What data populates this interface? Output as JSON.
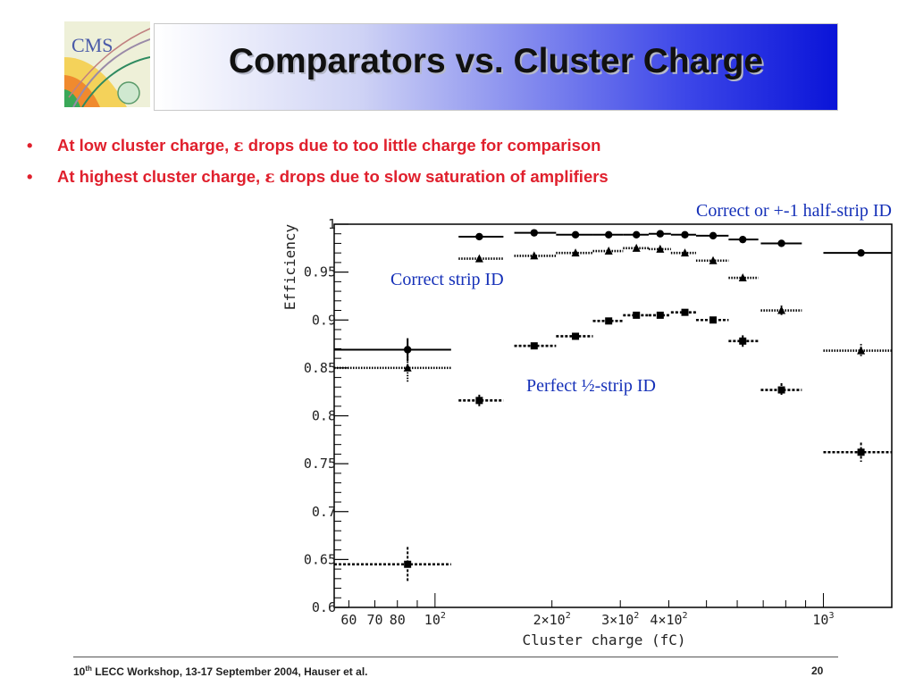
{
  "slide": {
    "title": "Comparators vs. Cluster Charge",
    "logo_text": "CMS",
    "bullets": [
      {
        "before": "At low cluster charge, ",
        "symbol": "ε",
        "after": " drops due to too little charge for comparison"
      },
      {
        "before": "At highest cluster charge, ",
        "symbol": "ε",
        "after": " drops due to slow saturation of amplifiers"
      }
    ],
    "footer": {
      "ordinal": "10",
      "sup": "th",
      "rest": " LECC Workshop, 13-17 September 2004, Hauser et al."
    },
    "page_number": "20",
    "colors": {
      "title_gradient_end": "#0a14d8",
      "bullet_text": "#e0202d",
      "annotation_text": "#1530b8"
    }
  },
  "chart_data": {
    "type": "scatter",
    "xscale": "log",
    "xlim": [
      55,
      1500
    ],
    "ylim": [
      0.6,
      1.0
    ],
    "xlabel": "Cluster charge (fC)",
    "ylabel": "Efficiency",
    "yticks": [
      {
        "v": 0.6,
        "label": "0.6"
      },
      {
        "v": 0.65,
        "label": "0.65"
      },
      {
        "v": 0.7,
        "label": "0.7"
      },
      {
        "v": 0.75,
        "label": "0.75"
      },
      {
        "v": 0.8,
        "label": "0.8"
      },
      {
        "v": 0.85,
        "label": "0.85"
      },
      {
        "v": 0.9,
        "label": "0.9"
      },
      {
        "v": 0.95,
        "label": "0.95"
      },
      {
        "v": 1.0,
        "label": "1"
      }
    ],
    "xtick_values": [
      60,
      70,
      80,
      90,
      100,
      200,
      300,
      400,
      500,
      600,
      700,
      800,
      900,
      1000
    ],
    "xtick_labels": [
      {
        "v": 60,
        "text": "60"
      },
      {
        "v": 70,
        "text": "70"
      },
      {
        "v": 80,
        "text": "80"
      },
      {
        "v": 100,
        "base": "10",
        "exp": "2"
      },
      {
        "v": 200,
        "base": "2×10",
        "exp": "2"
      },
      {
        "v": 300,
        "base": "3×10",
        "exp": "2"
      },
      {
        "v": 400,
        "base": "4×10",
        "exp": "2"
      },
      {
        "v": 1000,
        "base": "10",
        "exp": "3"
      }
    ],
    "annotations": [
      {
        "text": "Correct or +-1 half-strip ID"
      },
      {
        "text": "Correct strip ID"
      },
      {
        "text": "Perfect ½-strip ID"
      }
    ],
    "series": [
      {
        "marker": "circle",
        "line": "solid",
        "points": [
          {
            "x": 85,
            "y": 0.869,
            "xlo": 55,
            "xhi": 110,
            "err": 0.012
          },
          {
            "x": 130,
            "y": 0.987,
            "xlo": 115,
            "xhi": 150
          },
          {
            "x": 180,
            "y": 0.991,
            "xlo": 160,
            "xhi": 205
          },
          {
            "x": 230,
            "y": 0.989,
            "xlo": 205,
            "xhi": 255
          },
          {
            "x": 280,
            "y": 0.989,
            "xlo": 255,
            "xhi": 305
          },
          {
            "x": 330,
            "y": 0.989,
            "xlo": 305,
            "xhi": 355
          },
          {
            "x": 380,
            "y": 0.99,
            "xlo": 355,
            "xhi": 405
          },
          {
            "x": 440,
            "y": 0.989,
            "xlo": 405,
            "xhi": 470
          },
          {
            "x": 520,
            "y": 0.988,
            "xlo": 470,
            "xhi": 570
          },
          {
            "x": 620,
            "y": 0.984,
            "xlo": 570,
            "xhi": 680
          },
          {
            "x": 780,
            "y": 0.98,
            "xlo": 690,
            "xhi": 880
          },
          {
            "x": 1250,
            "y": 0.97,
            "xlo": 1000,
            "xhi": 1500
          }
        ]
      },
      {
        "marker": "triangle",
        "line": "dotted",
        "points": [
          {
            "x": 85,
            "y": 0.85,
            "xlo": 55,
            "xhi": 110,
            "err": 0.015
          },
          {
            "x": 130,
            "y": 0.964,
            "xlo": 115,
            "xhi": 150
          },
          {
            "x": 180,
            "y": 0.967,
            "xlo": 160,
            "xhi": 205
          },
          {
            "x": 230,
            "y": 0.97,
            "xlo": 205,
            "xhi": 255
          },
          {
            "x": 280,
            "y": 0.972,
            "xlo": 255,
            "xhi": 305
          },
          {
            "x": 330,
            "y": 0.975,
            "xlo": 305,
            "xhi": 355
          },
          {
            "x": 380,
            "y": 0.974,
            "xlo": 355,
            "xhi": 405
          },
          {
            "x": 440,
            "y": 0.97,
            "xlo": 405,
            "xhi": 470
          },
          {
            "x": 520,
            "y": 0.962,
            "xlo": 470,
            "xhi": 570
          },
          {
            "x": 620,
            "y": 0.944,
            "xlo": 570,
            "xhi": 680
          },
          {
            "x": 780,
            "y": 0.91,
            "xlo": 690,
            "xhi": 880,
            "err": 0.005
          },
          {
            "x": 1250,
            "y": 0.868,
            "xlo": 1000,
            "xhi": 1500,
            "err": 0.007
          }
        ]
      },
      {
        "marker": "square",
        "line": "dashed",
        "points": [
          {
            "x": 85,
            "y": 0.645,
            "xlo": 55,
            "xhi": 110,
            "err": 0.018
          },
          {
            "x": 130,
            "y": 0.816,
            "xlo": 115,
            "xhi": 150,
            "err": 0.006
          },
          {
            "x": 180,
            "y": 0.873,
            "xlo": 160,
            "xhi": 205
          },
          {
            "x": 230,
            "y": 0.883,
            "xlo": 205,
            "xhi": 255
          },
          {
            "x": 280,
            "y": 0.899,
            "xlo": 255,
            "xhi": 305
          },
          {
            "x": 330,
            "y": 0.905,
            "xlo": 305,
            "xhi": 355
          },
          {
            "x": 380,
            "y": 0.905,
            "xlo": 355,
            "xhi": 405
          },
          {
            "x": 440,
            "y": 0.908,
            "xlo": 405,
            "xhi": 470
          },
          {
            "x": 520,
            "y": 0.9,
            "xlo": 470,
            "xhi": 570
          },
          {
            "x": 620,
            "y": 0.878,
            "xlo": 570,
            "xhi": 680,
            "err": 0.006
          },
          {
            "x": 780,
            "y": 0.827,
            "xlo": 690,
            "xhi": 880,
            "err": 0.007
          },
          {
            "x": 1250,
            "y": 0.762,
            "xlo": 1000,
            "xhi": 1500,
            "err": 0.01
          }
        ]
      }
    ]
  }
}
